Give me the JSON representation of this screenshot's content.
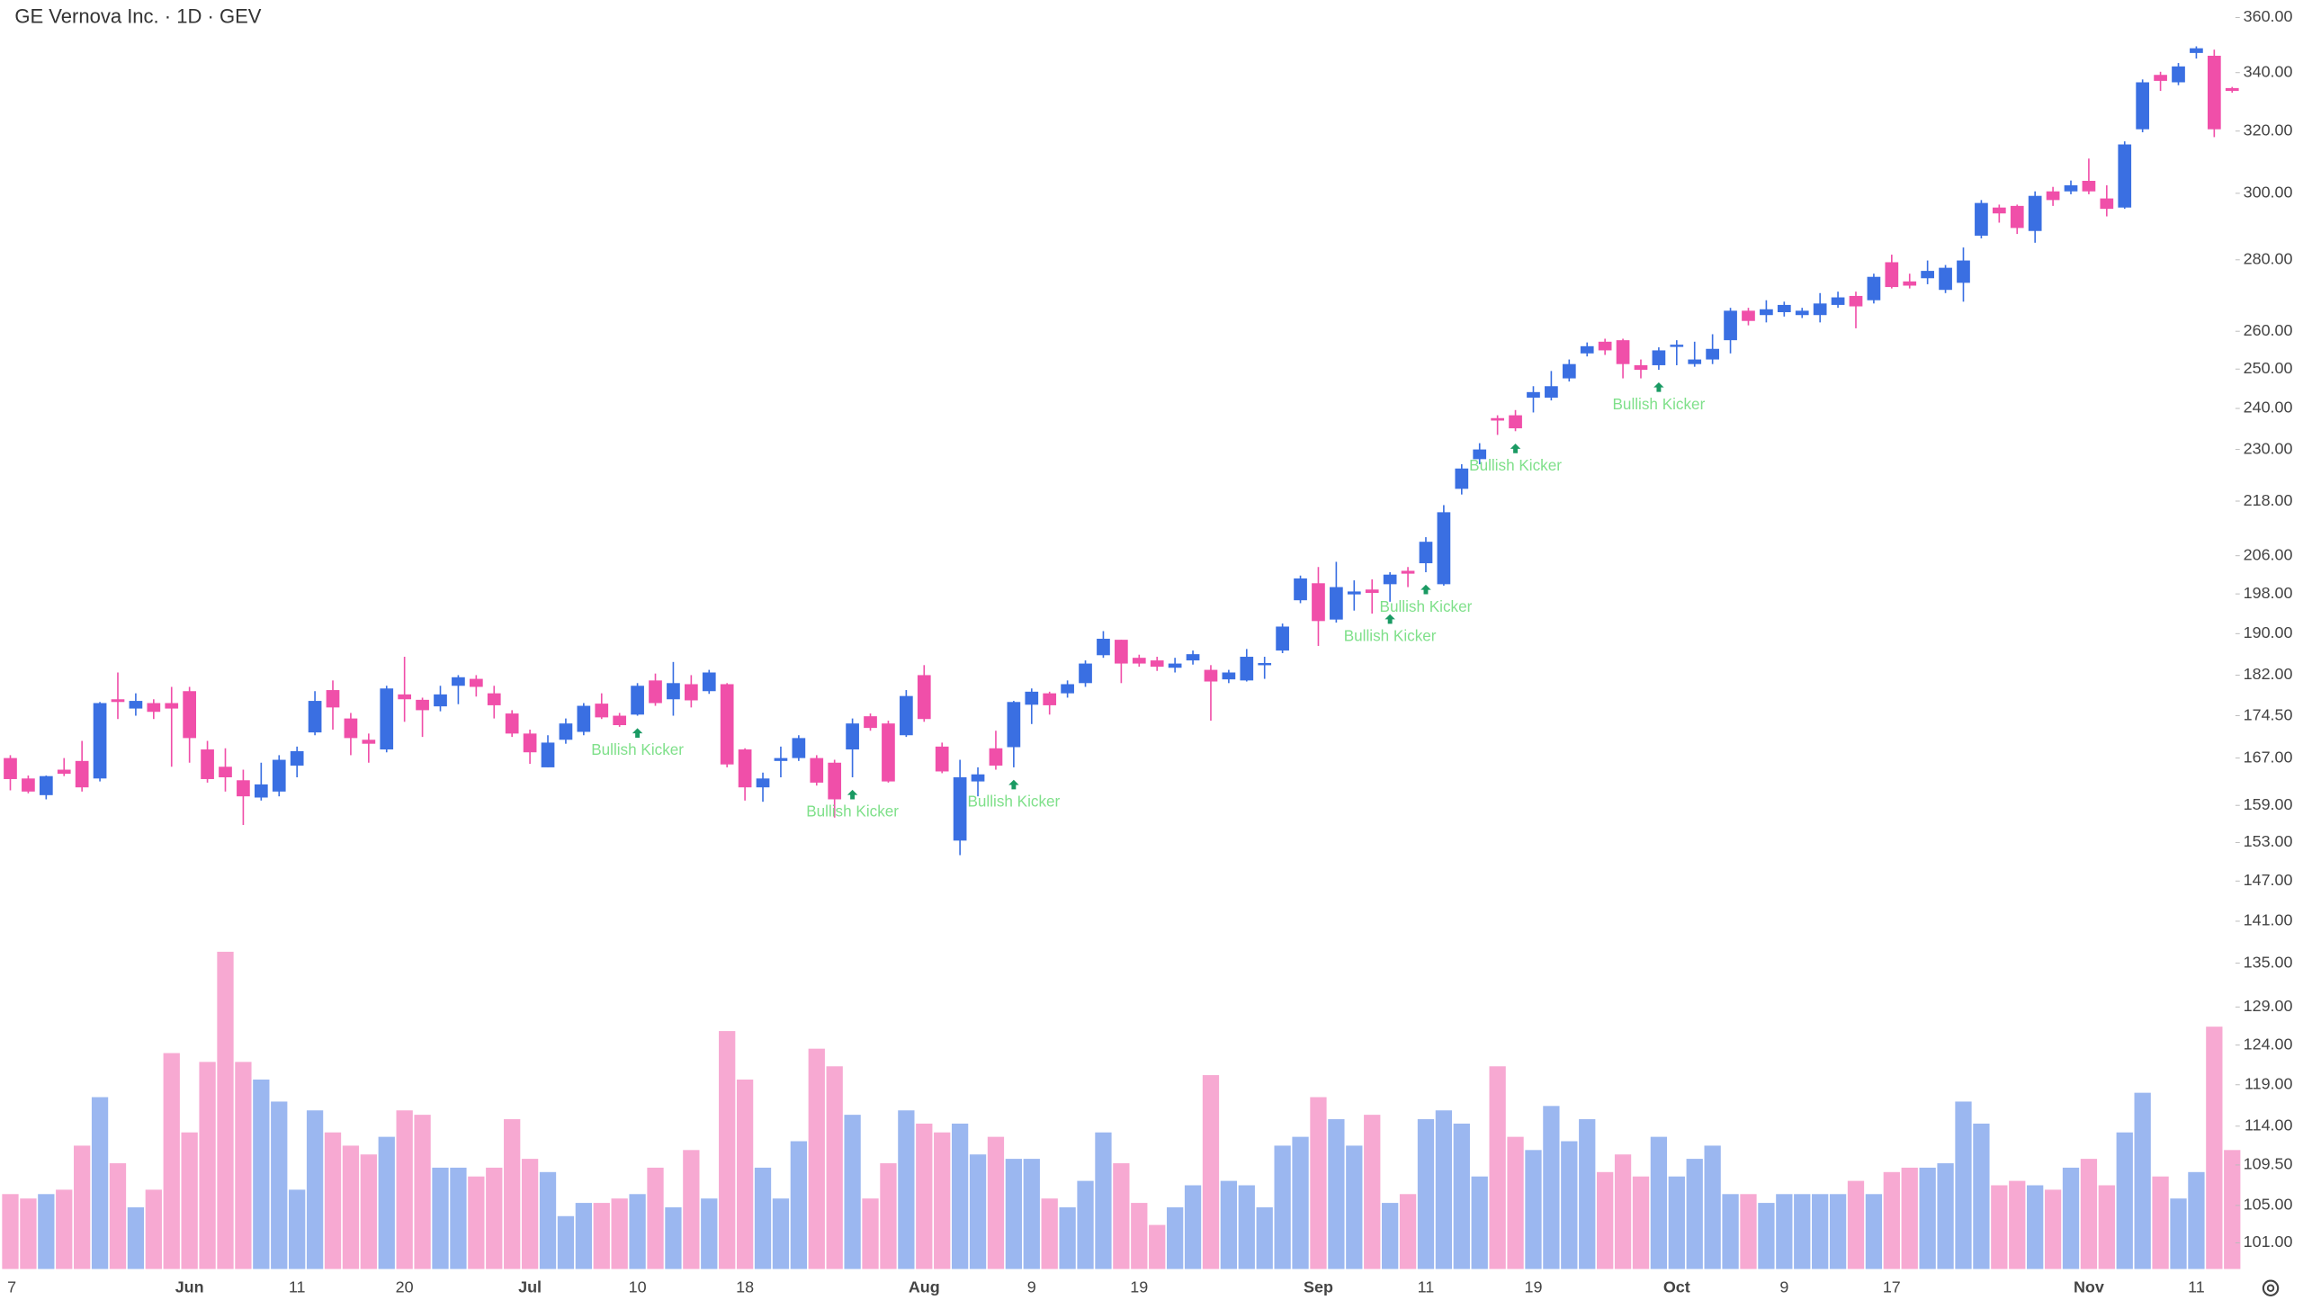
{
  "chart_data": {
    "type": "candlestick",
    "title": "GE Vernova Inc. · 1D · GEV",
    "log_scale": true,
    "up_color": "#3a6fe2",
    "down_color": "#f04fa9",
    "volume_up_color": "#9bb7f0",
    "volume_down_color": "#f7a9d2",
    "annotation_color": "#7fe08a",
    "marker_color": "#1a9a63",
    "categories": [
      "7",
      null,
      null,
      null,
      null,
      null,
      null,
      null,
      null,
      null,
      "Jun",
      null,
      null,
      null,
      null,
      null,
      "11",
      null,
      null,
      null,
      null,
      null,
      "20",
      null,
      null,
      null,
      null,
      null,
      null,
      "Jul",
      null,
      null,
      null,
      null,
      null,
      "10",
      null,
      null,
      null,
      null,
      null,
      "18",
      null,
      null,
      null,
      null,
      null,
      null,
      null,
      null,
      null,
      "Aug",
      null,
      null,
      null,
      null,
      null,
      "9",
      null,
      null,
      null,
      null,
      null,
      "19",
      null,
      null,
      null,
      null,
      null,
      null,
      null,
      null,
      null,
      "Sep",
      null,
      null,
      null,
      null,
      null,
      "11",
      null,
      null,
      null,
      null,
      null,
      "19",
      null,
      null,
      null,
      null,
      null,
      null,
      null,
      "Oct",
      null,
      null,
      null,
      null,
      null,
      "9",
      null,
      null,
      null,
      null,
      null,
      "17",
      null,
      null,
      null,
      null,
      null,
      null,
      null,
      null,
      null,
      null,
      "Nov",
      null,
      null,
      null,
      null,
      null,
      "11",
      null,
      null
    ],
    "open": [
      167,
      163.5,
      160.7,
      165,
      166.5,
      163.5,
      177.5,
      175.8,
      176.8,
      176.8,
      179,
      168.5,
      165.5,
      163.2,
      160.3,
      161.3,
      165.7,
      171.5,
      179.2,
      174,
      170.2,
      168.5,
      178.4,
      177.4,
      176.2,
      180,
      181.3,
      178.6,
      174.9,
      171.3,
      165.4,
      170.2,
      171.6,
      176.7,
      174.5,
      174.7,
      181,
      177.5,
      180.3,
      179,
      180.3,
      168.5,
      162,
      166.5,
      167,
      167,
      166.2,
      168.5,
      174.4,
      173.1,
      171,
      182,
      169,
      153.3,
      163,
      168.7,
      168.9,
      176.5,
      178.6,
      178.6,
      180.5,
      185.8,
      188.8,
      185.3,
      184.8,
      183.4,
      184.8,
      183,
      181.2,
      181,
      184,
      186.7,
      196.7,
      200.2,
      192.8,
      197.9,
      198.9,
      200,
      202.8,
      204.4,
      200,
      220.8,
      227.7,
      237.6,
      238.3,
      242.7,
      242.7,
      247.6,
      254.1,
      257.2,
      257.6,
      251,
      251,
      256,
      251.3,
      252.5,
      257.6,
      265.6,
      264.4,
      265.2,
      264.4,
      264.4,
      267.2,
      269.7,
      268.5,
      279.3,
      273.8,
      274.7,
      271.4,
      273.4,
      287.1,
      295.6,
      296.1,
      288.5,
      300.6,
      300.6,
      303.9,
      298.4,
      295.6,
      320.6,
      339.2,
      336.6,
      347,
      346,
      334.6
    ],
    "high": [
      167.5,
      164,
      164,
      167,
      170,
      177,
      182.5,
      178.6,
      177.5,
      179.8,
      179.8,
      170,
      168.7,
      165,
      166.2,
      167.5,
      169,
      179,
      181,
      175,
      171.3,
      180,
      185.5,
      177.8,
      180,
      182,
      182,
      180,
      175.5,
      172,
      171,
      174,
      176.8,
      178.6,
      175,
      180.5,
      182.3,
      184.5,
      182,
      183,
      180.5,
      168.7,
      164.5,
      169,
      171,
      167.5,
      166.7,
      174,
      174.9,
      173.6,
      179.2,
      183.9,
      169.7,
      166.7,
      165.4,
      171.8,
      177.2,
      179.5,
      178.9,
      181,
      184.8,
      190.5,
      188.8,
      185.9,
      185.5,
      185.3,
      186.7,
      183.9,
      183,
      187,
      185.5,
      192,
      201.8,
      203.6,
      204.7,
      200.8,
      201,
      202.5,
      203.6,
      210,
      217.1,
      226.5,
      231.5,
      238.3,
      239.6,
      245.6,
      249.5,
      252.5,
      257,
      258,
      258,
      252.5,
      255.7,
      257.6,
      257.2,
      259.2,
      266.4,
      266.4,
      268.5,
      268.1,
      266.4,
      270.5,
      270.9,
      270.9,
      276,
      281.5,
      276,
      279.8,
      278.5,
      283.6,
      297.9,
      296.5,
      296.5,
      300.6,
      302,
      304,
      311,
      302.5,
      316.6,
      337.6,
      340.3,
      343.4,
      349.4,
      348.2,
      335
    ],
    "low": [
      161.5,
      161,
      160,
      163.9,
      161.3,
      163,
      173.9,
      174.5,
      173.9,
      165.5,
      166.2,
      162.8,
      161.3,
      155.8,
      159.8,
      160.5,
      163.7,
      171,
      172,
      167.5,
      166.2,
      168,
      173.4,
      170.7,
      175.3,
      176.6,
      178,
      174,
      170.7,
      166,
      165.4,
      169.5,
      171,
      173.9,
      172.5,
      174.5,
      176.3,
      174.5,
      176,
      178.5,
      165.4,
      159.8,
      159.6,
      163.7,
      166.5,
      162.3,
      157,
      163.7,
      171.8,
      162.8,
      170.7,
      173.4,
      164.4,
      151,
      160.5,
      165,
      165.4,
      173,
      174.7,
      177.8,
      179.8,
      185.3,
      180.5,
      183.6,
      182.8,
      182.5,
      184,
      173.6,
      180.5,
      180.8,
      181.3,
      186.2,
      196.1,
      187.6,
      192.2,
      194.6,
      194,
      196.4,
      199.4,
      202.5,
      199.7,
      219.5,
      226.5,
      233.5,
      234.4,
      239,
      242,
      246.8,
      253.3,
      253.7,
      247.6,
      247.6,
      249.8,
      251,
      250.6,
      251.3,
      254.1,
      261.6,
      262.4,
      264,
      263.6,
      262.4,
      266.4,
      260.8,
      267.6,
      271.8,
      271.8,
      273,
      270.5,
      268.1,
      286.3,
      291,
      287.6,
      285,
      296.1,
      299.7,
      299.7,
      292.9,
      295.2,
      319.6,
      333.6,
      335.6,
      345,
      318,
      333
    ],
    "close": [
      163.4,
      161.3,
      163.9,
      164.3,
      162,
      176.8,
      177,
      177.2,
      175.2,
      175.8,
      170.5,
      163.4,
      163.7,
      160.5,
      162.5,
      166.7,
      168.2,
      177.2,
      176,
      170.5,
      169.5,
      179.5,
      177.5,
      175.5,
      178.4,
      181.6,
      179.8,
      176.4,
      171.3,
      168,
      169.7,
      173.1,
      176.3,
      174.2,
      172.8,
      180,
      176.8,
      180.5,
      177.3,
      182.5,
      165.9,
      162,
      163.5,
      167,
      170.5,
      162.8,
      160,
      173.1,
      172.3,
      163,
      178.1,
      173.9,
      164.7,
      163.7,
      164.2,
      165.7,
      177,
      178.9,
      176.4,
      180.3,
      184.2,
      189,
      184.2,
      184.2,
      183.6,
      184.2,
      186,
      180.8,
      182.5,
      185.5,
      184.3,
      191.4,
      201.2,
      192.5,
      199.4,
      198.5,
      198.2,
      202,
      202.2,
      209,
      215.5,
      225.5,
      230,
      237,
      235.1,
      244.1,
      245.6,
      251.3,
      256,
      254.9,
      251.3,
      249.8,
      254.9,
      256.4,
      252.5,
      255.3,
      265.6,
      262.8,
      266,
      267.2,
      265.6,
      267.6,
      269.3,
      266.8,
      275.1,
      272.2,
      272.6,
      276.8,
      277.7,
      279.8,
      297,
      293.8,
      289.4,
      299.2,
      297.9,
      302.5,
      300.6,
      295.2,
      315.6,
      336.6,
      337.1,
      342.2,
      348.7,
      320.6,
      333.6
    ],
    "volume": [
      1.7,
      1.6,
      1.7,
      1.8,
      2.8,
      3.9,
      2.4,
      1.4,
      1.8,
      4.9,
      3.1,
      4.7,
      7.2,
      4.7,
      4.3,
      3.8,
      1.8,
      3.6,
      3.1,
      2.8,
      2.6,
      3.0,
      3.6,
      3.5,
      2.3,
      2.3,
      2.1,
      2.3,
      3.4,
      2.5,
      2.2,
      1.2,
      1.5,
      1.5,
      1.6,
      1.7,
      2.3,
      1.4,
      2.7,
      1.6,
      5.4,
      4.3,
      2.3,
      1.6,
      2.9,
      5.0,
      4.6,
      3.5,
      1.6,
      2.4,
      3.6,
      3.3,
      3.1,
      3.3,
      2.6,
      3.0,
      2.5,
      2.5,
      1.6,
      1.4,
      2.0,
      3.1,
      2.4,
      1.5,
      1.0,
      1.4,
      1.9,
      4.4,
      2.0,
      1.9,
      1.4,
      2.8,
      3.0,
      3.9,
      3.4,
      2.8,
      3.5,
      1.5,
      1.7,
      3.4,
      3.6,
      3.3,
      2.1,
      4.6,
      3.0,
      2.7,
      3.7,
      2.9,
      3.4,
      2.2,
      2.6,
      2.1,
      3.0,
      2.1,
      2.5,
      2.8,
      1.7,
      1.7,
      1.5,
      1.7,
      1.7,
      1.7,
      1.7,
      2.0,
      1.7,
      2.2,
      2.3,
      2.3,
      2.4,
      3.8,
      3.3,
      1.9,
      2.0,
      1.9,
      1.8,
      2.3,
      2.5,
      1.9,
      3.1,
      4.0,
      2.1,
      1.6,
      2.2,
      5.5,
      2.7
    ],
    "annotations": [
      {
        "label": "Bullish Kicker",
        "index": 35
      },
      {
        "label": "Bullish Kicker",
        "index": 47
      },
      {
        "label": "Bullish Kicker",
        "index": 56
      },
      {
        "label": "Bullish Kicker",
        "index": 77
      },
      {
        "label": "Bullish Kicker",
        "index": 79
      },
      {
        "label": "Bullish Kicker",
        "index": 84
      },
      {
        "label": "Bullish Kicker",
        "index": 92
      }
    ],
    "ylim": [
      98.3,
      366.6
    ],
    "yticks": [
      {
        "value": 360,
        "label": "360.00"
      },
      {
        "value": 340,
        "label": "340.00"
      },
      {
        "value": 320,
        "label": "320.00"
      },
      {
        "value": 300,
        "label": "300.00"
      },
      {
        "value": 280,
        "label": "280.00"
      },
      {
        "value": 260,
        "label": "260.00"
      },
      {
        "value": 250,
        "label": "250.00"
      },
      {
        "value": 240,
        "label": "240.00"
      },
      {
        "value": 230,
        "label": "230.00"
      },
      {
        "value": 218,
        "label": "218.00"
      },
      {
        "value": 206,
        "label": "206.00"
      },
      {
        "value": 198,
        "label": "198.00"
      },
      {
        "value": 190,
        "label": "190.00"
      },
      {
        "value": 182,
        "label": "182.00"
      },
      {
        "value": 174.5,
        "label": "174.50"
      },
      {
        "value": 167,
        "label": "167.00"
      },
      {
        "value": 159,
        "label": "159.00"
      },
      {
        "value": 153,
        "label": "153.00"
      },
      {
        "value": 147,
        "label": "147.00"
      },
      {
        "value": 141,
        "label": "141.00"
      },
      {
        "value": 135,
        "label": "135.00"
      },
      {
        "value": 129,
        "label": "129.00"
      },
      {
        "value": 124,
        "label": "124.00"
      },
      {
        "value": 119,
        "label": "119.00"
      },
      {
        "value": 114,
        "label": "114.00"
      },
      {
        "value": 109.5,
        "label": "109.50"
      },
      {
        "value": 105,
        "label": "105.00"
      },
      {
        "value": 101,
        "label": "101.00"
      }
    ]
  }
}
